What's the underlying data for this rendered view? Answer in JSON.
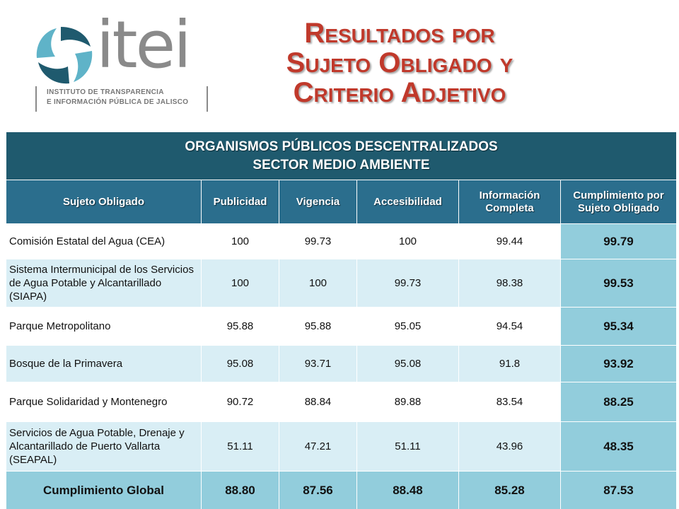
{
  "logo": {
    "wordmark": "itei",
    "subtitle_line1": "INSTITUTO DE TRANSPARENCIA",
    "subtitle_line2": "E INFORMACIÓN PÚBLICA DE JALISCO",
    "mark_color_dark": "#1f5a6e",
    "mark_color_light": "#5fb3c8"
  },
  "title": {
    "line1": "Resultados por",
    "line2": "Sujeto Obligado y",
    "line3": "Criterio Adjetivo",
    "color": "#c0392b"
  },
  "table": {
    "banner_line1": "ORGANISMOS PÚBLICOS DESCENTRALIZADOS",
    "banner_line2": "SECTOR MEDIO AMBIENTE",
    "headers": [
      "Sujeto Obligado",
      "Publicidad",
      "Vigencia",
      "Accesibilidad",
      "Información Completa",
      "Cumplimiento por Sujeto Obligado"
    ],
    "rows": [
      {
        "entity": "Comisión Estatal del Agua (CEA)",
        "publicidad": "100",
        "vigencia": "99.73",
        "accesibilidad": "100",
        "informacion": "99.44",
        "cumplimiento": "99.79"
      },
      {
        "entity": "Sistema Intermunicipal de los Servicios de Agua Potable y Alcantarillado (SIAPA)",
        "publicidad": "100",
        "vigencia": "100",
        "accesibilidad": "99.73",
        "informacion": "98.38",
        "cumplimiento": "99.53"
      },
      {
        "entity": "Parque Metropolitano",
        "publicidad": "95.88",
        "vigencia": "95.88",
        "accesibilidad": "95.05",
        "informacion": "94.54",
        "cumplimiento": "95.34"
      },
      {
        "entity": "Bosque de la Primavera",
        "publicidad": "95.08",
        "vigencia": "93.71",
        "accesibilidad": "95.08",
        "informacion": "91.8",
        "cumplimiento": "93.92"
      },
      {
        "entity": "Parque Solidaridad y Montenegro",
        "publicidad": "90.72",
        "vigencia": "88.84",
        "accesibilidad": "89.88",
        "informacion": "83.54",
        "cumplimiento": "88.25"
      },
      {
        "entity": "Servicios de Agua Potable, Drenaje y Alcantarillado de Puerto Vallarta (SEAPAL)",
        "publicidad": "51.11",
        "vigencia": "47.21",
        "accesibilidad": "51.11",
        "informacion": "43.96",
        "cumplimiento": "48.35"
      }
    ],
    "footer": {
      "label": "Cumplimiento Global",
      "publicidad": "88.80",
      "vigencia": "87.56",
      "accesibilidad": "88.48",
      "informacion": "85.28",
      "cumplimiento": "87.53"
    },
    "colors": {
      "banner": "#1f5a6e",
      "header": "#2b6e8d",
      "row_alt": "#d9eef5",
      "highlight": "#92cddc"
    }
  }
}
